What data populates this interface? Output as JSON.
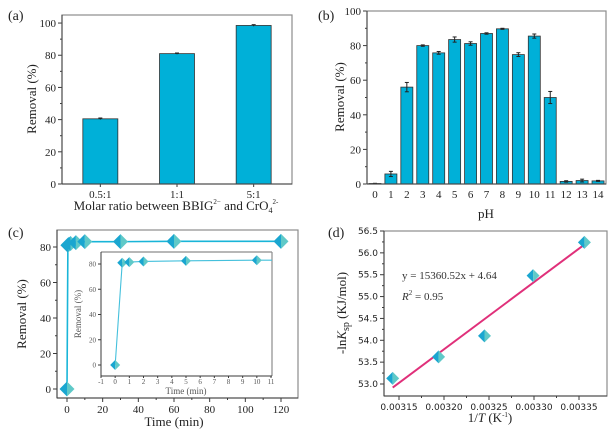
{
  "colors": {
    "bar": "#00b0d8",
    "marker_left": "#1aa6d0",
    "marker_right": "#5fc9c8",
    "fit_line": "#e0307a",
    "line": "#19b5d8"
  },
  "chart_data": [
    {
      "panel": "(a)",
      "type": "bar",
      "title": "",
      "xlabel": "Molar ratio between BBIG2- and CrO42-",
      "xlabel_parts": {
        "pre": "Molar ratio between BBIG",
        "sup1": "2−",
        "mid": " and CrO",
        "sub": "4",
        "sup2": "2-"
      },
      "ylabel": "Removal (%)",
      "ylim": [
        0,
        105
      ],
      "yticks": [
        0,
        20,
        40,
        60,
        80,
        100
      ],
      "categories": [
        "0.5:1",
        "1:1",
        "5:1"
      ],
      "values": [
        40.5,
        81.0,
        98.5
      ],
      "errors": [
        0.5,
        0.4,
        0.5
      ]
    },
    {
      "panel": "(b)",
      "type": "bar",
      "title": "",
      "xlabel": "pH",
      "ylabel": "Removal (%)",
      "ylim": [
        0,
        100
      ],
      "yticks": [
        0,
        20,
        40,
        60,
        80,
        100
      ],
      "categories": [
        "0",
        "1",
        "2",
        "3",
        "4",
        "5",
        "6",
        "7",
        "8",
        "9",
        "10",
        "11",
        "12",
        "13",
        "14"
      ],
      "values": [
        0.3,
        5.8,
        56.0,
        80.0,
        75.8,
        83.5,
        81.2,
        87.0,
        89.7,
        74.8,
        85.5,
        50.0,
        1.5,
        2.0,
        1.8
      ],
      "errors": [
        0.1,
        1.5,
        2.7,
        0.4,
        0.8,
        1.5,
        1.0,
        0.4,
        0.3,
        1.1,
        1.2,
        3.5,
        0.4,
        0.8,
        0.3
      ]
    },
    {
      "panel": "(c)",
      "type": "line",
      "title": "",
      "xlabel": "Time (min)",
      "ylabel": "Removal (%)",
      "xlim": [
        -4,
        127
      ],
      "ylim": [
        -5,
        90
      ],
      "xticks": [
        0,
        20,
        40,
        60,
        80,
        100,
        120
      ],
      "yticks": [
        0,
        20,
        40,
        60,
        80
      ],
      "x": [
        0,
        0.5,
        1,
        2,
        5,
        10,
        30,
        60,
        120
      ],
      "y": [
        0,
        81.0,
        81.5,
        82.0,
        82.5,
        83.0,
        83.0,
        83.2,
        83.2
      ],
      "inset": {
        "xlabel": "Time (min)",
        "ylabel": "Removal (%)",
        "xlim": [
          -1,
          11
        ],
        "ylim": [
          -5,
          90
        ],
        "xticks": [
          -1,
          0,
          1,
          2,
          3,
          4,
          5,
          6,
          7,
          8,
          9,
          10,
          11
        ],
        "yticks": [
          0,
          20,
          40,
          60,
          80
        ],
        "x": [
          0,
          0.5,
          1,
          2,
          5,
          10
        ],
        "y": [
          0,
          81.0,
          81.5,
          82.0,
          82.5,
          83.0
        ]
      }
    },
    {
      "panel": "(d)",
      "type": "scatter",
      "title": "",
      "xlabel": "1/T (K-1)",
      "ylabel": "-lnKsp (KJ/mol)",
      "xlim": [
        0.003133,
        0.003383
      ],
      "ylim": [
        52.85,
        56.5
      ],
      "xticks": [
        "0.00315",
        "0.00320",
        "0.00325",
        "0.00330",
        "0.00335"
      ],
      "xtick_values": [
        0.00315,
        0.0032,
        0.00325,
        0.0033,
        0.00335
      ],
      "yticks": [
        "53.0",
        "53.5",
        "54.0",
        "54.5",
        "55.0",
        "55.5",
        "56.0",
        "56.5"
      ],
      "ytick_values": [
        53.0,
        53.5,
        54.0,
        54.5,
        55.0,
        55.5,
        56.0,
        56.5
      ],
      "x": [
        0.003143,
        0.003194,
        0.003245,
        0.003299,
        0.003356
      ],
      "y": [
        53.13,
        53.62,
        54.1,
        55.48,
        56.24
      ],
      "fit": {
        "slope": 15360.52,
        "intercept": 4.64,
        "x_range": [
          0.003143,
          0.003356
        ]
      },
      "annotations": {
        "equation": "y = 15360.52x + 4.64",
        "r2_label": "R",
        "r2_sup": "2",
        "r2_value": " = 0.95"
      }
    }
  ]
}
